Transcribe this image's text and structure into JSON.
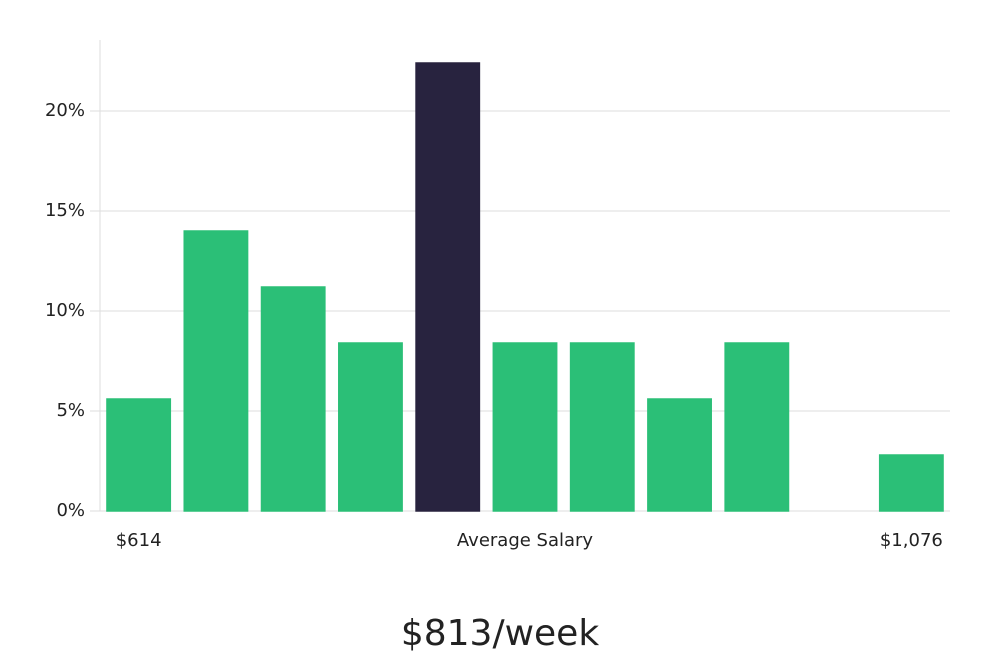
{
  "chart_data": {
    "type": "bar",
    "categories": [
      "$614",
      null,
      null,
      null,
      null,
      null,
      null,
      null,
      null,
      null,
      "$1,076"
    ],
    "values": [
      5.6,
      14.0,
      11.2,
      8.4,
      22.4,
      8.4,
      8.4,
      5.6,
      8.4,
      0,
      2.8
    ],
    "colors": [
      "#2bbf77",
      "#2bbf77",
      "#2bbf77",
      "#2bbf77",
      "#28233f",
      "#2bbf77",
      "#2bbf77",
      "#2bbf77",
      "#2bbf77",
      "#2bbf77",
      "#2bbf77"
    ],
    "x_label": "Average Salary",
    "annotation": "$813/week",
    "ylim": [
      0,
      23.5
    ],
    "yticks": [
      {
        "value": 0,
        "label": "0%"
      },
      {
        "value": 5,
        "label": "5%"
      },
      {
        "value": 10,
        "label": "10%"
      },
      {
        "value": 15,
        "label": "15%"
      },
      {
        "value": 20,
        "label": "20%"
      }
    ],
    "grid": true
  }
}
